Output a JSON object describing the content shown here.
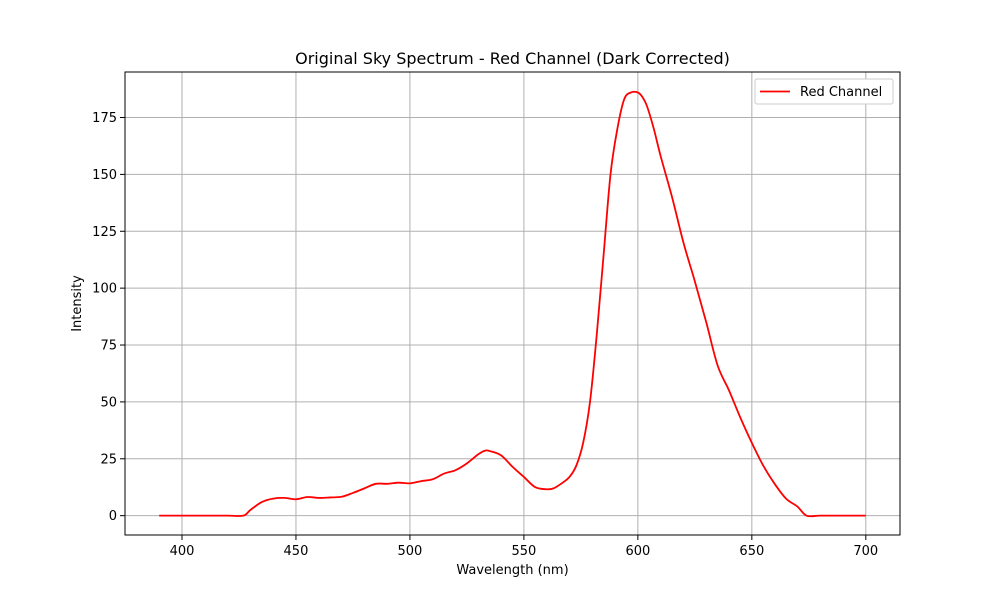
{
  "chart_data": {
    "type": "line",
    "title": "Original Sky Spectrum - Red Channel (Dark Corrected)",
    "xlabel": "Wavelength (nm)",
    "ylabel": "Intensity",
    "xlim": [
      375,
      715
    ],
    "ylim": [
      -8.5,
      195
    ],
    "xticks": [
      400,
      450,
      500,
      550,
      600,
      650,
      700
    ],
    "yticks": [
      0,
      25,
      50,
      75,
      100,
      125,
      150,
      175
    ],
    "grid": true,
    "legend_position": "top-right",
    "series": [
      {
        "name": "Red Channel",
        "color": "#ff0000",
        "x": [
          390,
          400,
          410,
          420,
          427,
          430,
          435,
          440,
          445,
          450,
          455,
          460,
          465,
          470,
          475,
          480,
          485,
          490,
          495,
          500,
          505,
          510,
          515,
          520,
          525,
          530,
          533,
          535,
          540,
          545,
          550,
          555,
          560,
          563,
          567,
          570,
          573,
          576,
          579,
          582,
          585,
          588,
          591,
          594,
          597,
          600,
          602,
          604,
          607,
          610,
          615,
          620,
          625,
          630,
          635,
          640,
          645,
          650,
          655,
          660,
          665,
          670,
          674,
          680,
          690,
          700
        ],
        "y": [
          0,
          0,
          0,
          0,
          0,
          2.5,
          6,
          7.5,
          7.8,
          7.2,
          8.2,
          7.8,
          8,
          8.3,
          10,
          12,
          14,
          14,
          14.5,
          14.2,
          15.2,
          16,
          18.5,
          20,
          23,
          27,
          28.6,
          28.4,
          26.5,
          21.5,
          17,
          12.5,
          11.6,
          12,
          14.5,
          17,
          22,
          32,
          50,
          80,
          115,
          150,
          170,
          183,
          186,
          186,
          184,
          180,
          170,
          158,
          140,
          120,
          103,
          85,
          66,
          55,
          43,
          32,
          22,
          14,
          7.5,
          4,
          0,
          0,
          0,
          0
        ]
      }
    ]
  }
}
